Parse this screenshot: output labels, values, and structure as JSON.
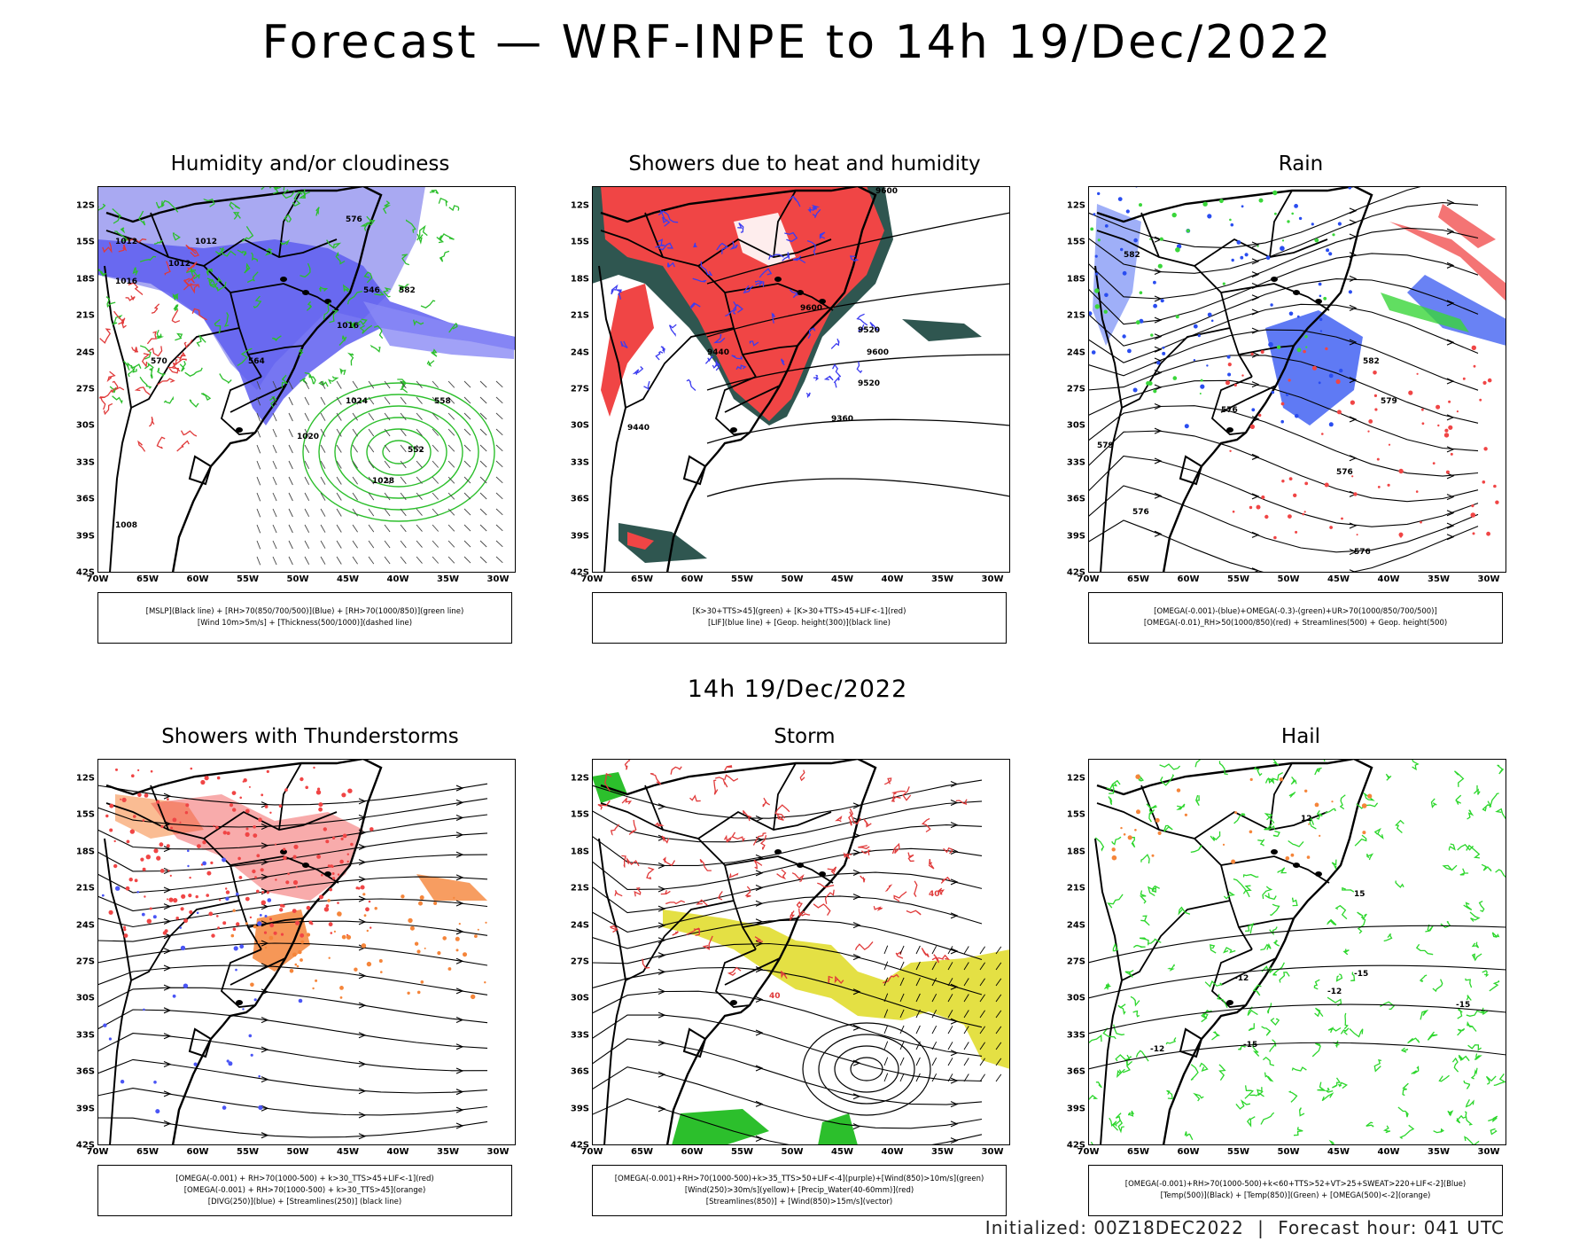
{
  "page": {
    "title": "Forecast — WRF-INPE to 14h 19/Dec/2022",
    "subtitle": "14h 19/Dec/2022",
    "footer": {
      "initialized": "Initialized: 00Z18DEC2022",
      "separator": "|",
      "forecast_hour": "Forecast hour: 041 UTC"
    }
  },
  "axes": {
    "lat_labels": [
      "12S",
      "15S",
      "18S",
      "21S",
      "24S",
      "27S",
      "30S",
      "33S",
      "36S",
      "39S",
      "42S"
    ],
    "lon_labels": [
      "70W",
      "65W",
      "60W",
      "55W",
      "50W",
      "45W",
      "40W",
      "35W",
      "30W"
    ]
  },
  "panels": [
    {
      "title": "Humidity and/or cloudiness",
      "legend": [
        "[MSLP](Black line) + [RH>70(850/700/500)](Blue) + [RH>70(1000/850)](green line)",
        "[Wind 10m>5m/s] + [Thickness(500/1000)](dashed line)"
      ],
      "contour_labels": [
        "1012",
        "1012",
        "1012",
        "1016",
        "1016",
        "1020",
        "1024",
        "1028",
        "1008",
        "570",
        "576",
        "582",
        "564",
        "558",
        "552",
        "546"
      ]
    },
    {
      "title": "Showers due to heat and humidity",
      "legend": [
        "[K>30+TTS>45](green) + [K>30+TTS>45+LIF<-1](red)",
        "[LIF](blue line) + [Geop. height(300)](black line)"
      ],
      "contour_labels": [
        "9600",
        "9600",
        "9600",
        "9520",
        "9520",
        "9440",
        "9440",
        "9360"
      ]
    },
    {
      "title": "Rain",
      "legend": [
        "[OMEGA(-0.001)-(blue)+OMEGA(-0.3)-(green)+UR>70(1000/850/700/500)]",
        "[OMEGA(-0.01)_RH>50(1000/850)(red) + Streamlines(500) + Geop. height(500)"
      ],
      "contour_labels": [
        "582",
        "582",
        "579",
        "579",
        "576",
        "576",
        "576",
        "576"
      ]
    },
    {
      "title": "Showers with Thunderstorms",
      "legend": [
        "[OMEGA(-0.001) + RH>70(1000-500) + k>30_TTS>45+LIF<-1](red)",
        "[OMEGA(-0.001) + RH>70(1000-500) + k>30_TTS>45](orange)",
        "[DIVG(250)](blue) + [Streamlines(250)] (black line)"
      ],
      "contour_labels": []
    },
    {
      "title": "Storm",
      "legend": [
        "[OMEGA(-0.001)+RH>70(1000-500)+k>35_TTS>50+LIF<-4](purple)+[Wind(850)>10m/s](green)",
        "[Wind(250)>30m/s](yellow)+ [Precip_Water(40-60mm)](red)",
        "[Streamlines(850)] + [Wind(850)>15m/s](vector)"
      ],
      "contour_labels": [
        "40",
        "40"
      ]
    },
    {
      "title": "Hail",
      "legend": [
        "[OMEGA(-0.001)+RH>70(1000-500)+k<60+TTS>52+VT>25+SWEAT>220+LIF<-2](Blue)",
        "[Temp(500)](Black) + [Temp(850)](Green) + [OMEGA(500)<-2](orange)"
      ],
      "contour_labels": [
        "-12",
        "-12",
        "-12",
        "-15",
        "-15",
        "-15",
        "12",
        "15"
      ]
    }
  ]
}
